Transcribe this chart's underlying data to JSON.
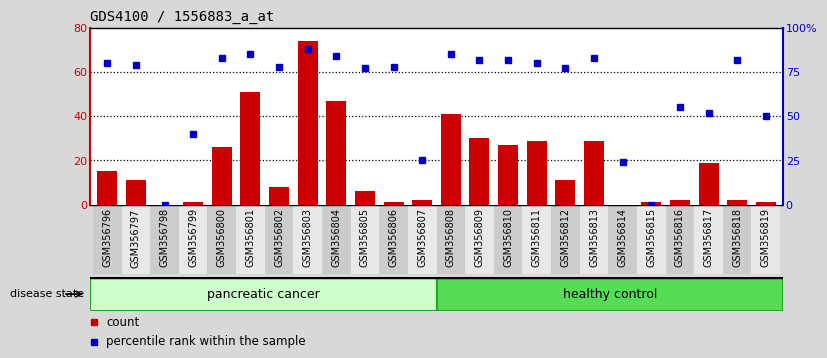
{
  "title": "GDS4100 / 1556883_a_at",
  "categories": [
    "GSM356796",
    "GSM356797",
    "GSM356798",
    "GSM356799",
    "GSM356800",
    "GSM356801",
    "GSM356802",
    "GSM356803",
    "GSM356804",
    "GSM356805",
    "GSM356806",
    "GSM356807",
    "GSM356808",
    "GSM356809",
    "GSM356810",
    "GSM356811",
    "GSM356812",
    "GSM356813",
    "GSM356814",
    "GSM356815",
    "GSM356816",
    "GSM356817",
    "GSM356818",
    "GSM356819"
  ],
  "count_values": [
    15,
    11,
    0,
    1,
    26,
    51,
    8,
    74,
    47,
    6,
    1,
    2,
    41,
    30,
    27,
    29,
    11,
    29,
    0,
    1,
    2,
    19,
    2,
    1
  ],
  "percentile_values": [
    80,
    79,
    0,
    40,
    83,
    85,
    78,
    88,
    84,
    77,
    78,
    25,
    85,
    82,
    82,
    80,
    77,
    83,
    24,
    0,
    55,
    52,
    82,
    50
  ],
  "bar_color": "#cc0000",
  "dot_color": "#0000cc",
  "ylim_left": [
    0,
    80
  ],
  "ylim_right": [
    0,
    100
  ],
  "yticks_left": [
    0,
    20,
    40,
    60,
    80
  ],
  "yticks_right": [
    0,
    25,
    50,
    75,
    100
  ],
  "yticklabels_right": [
    "0",
    "25",
    "50",
    "75",
    "100%"
  ],
  "group1_label": "pancreatic cancer",
  "group2_label": "healthy control",
  "group1_color": "#ccffcc",
  "group2_color": "#55dd55",
  "group1_count": 12,
  "group2_count": 12,
  "legend_count_label": "count",
  "legend_percentile_label": "percentile rank within the sample",
  "disease_state_label": "disease state",
  "background_color": "#d8d8d8",
  "plot_bg_color": "#ffffff",
  "tick_label_bg": "#cccccc",
  "title_fontsize": 10,
  "tick_fontsize": 7,
  "label_fontsize": 8.5
}
